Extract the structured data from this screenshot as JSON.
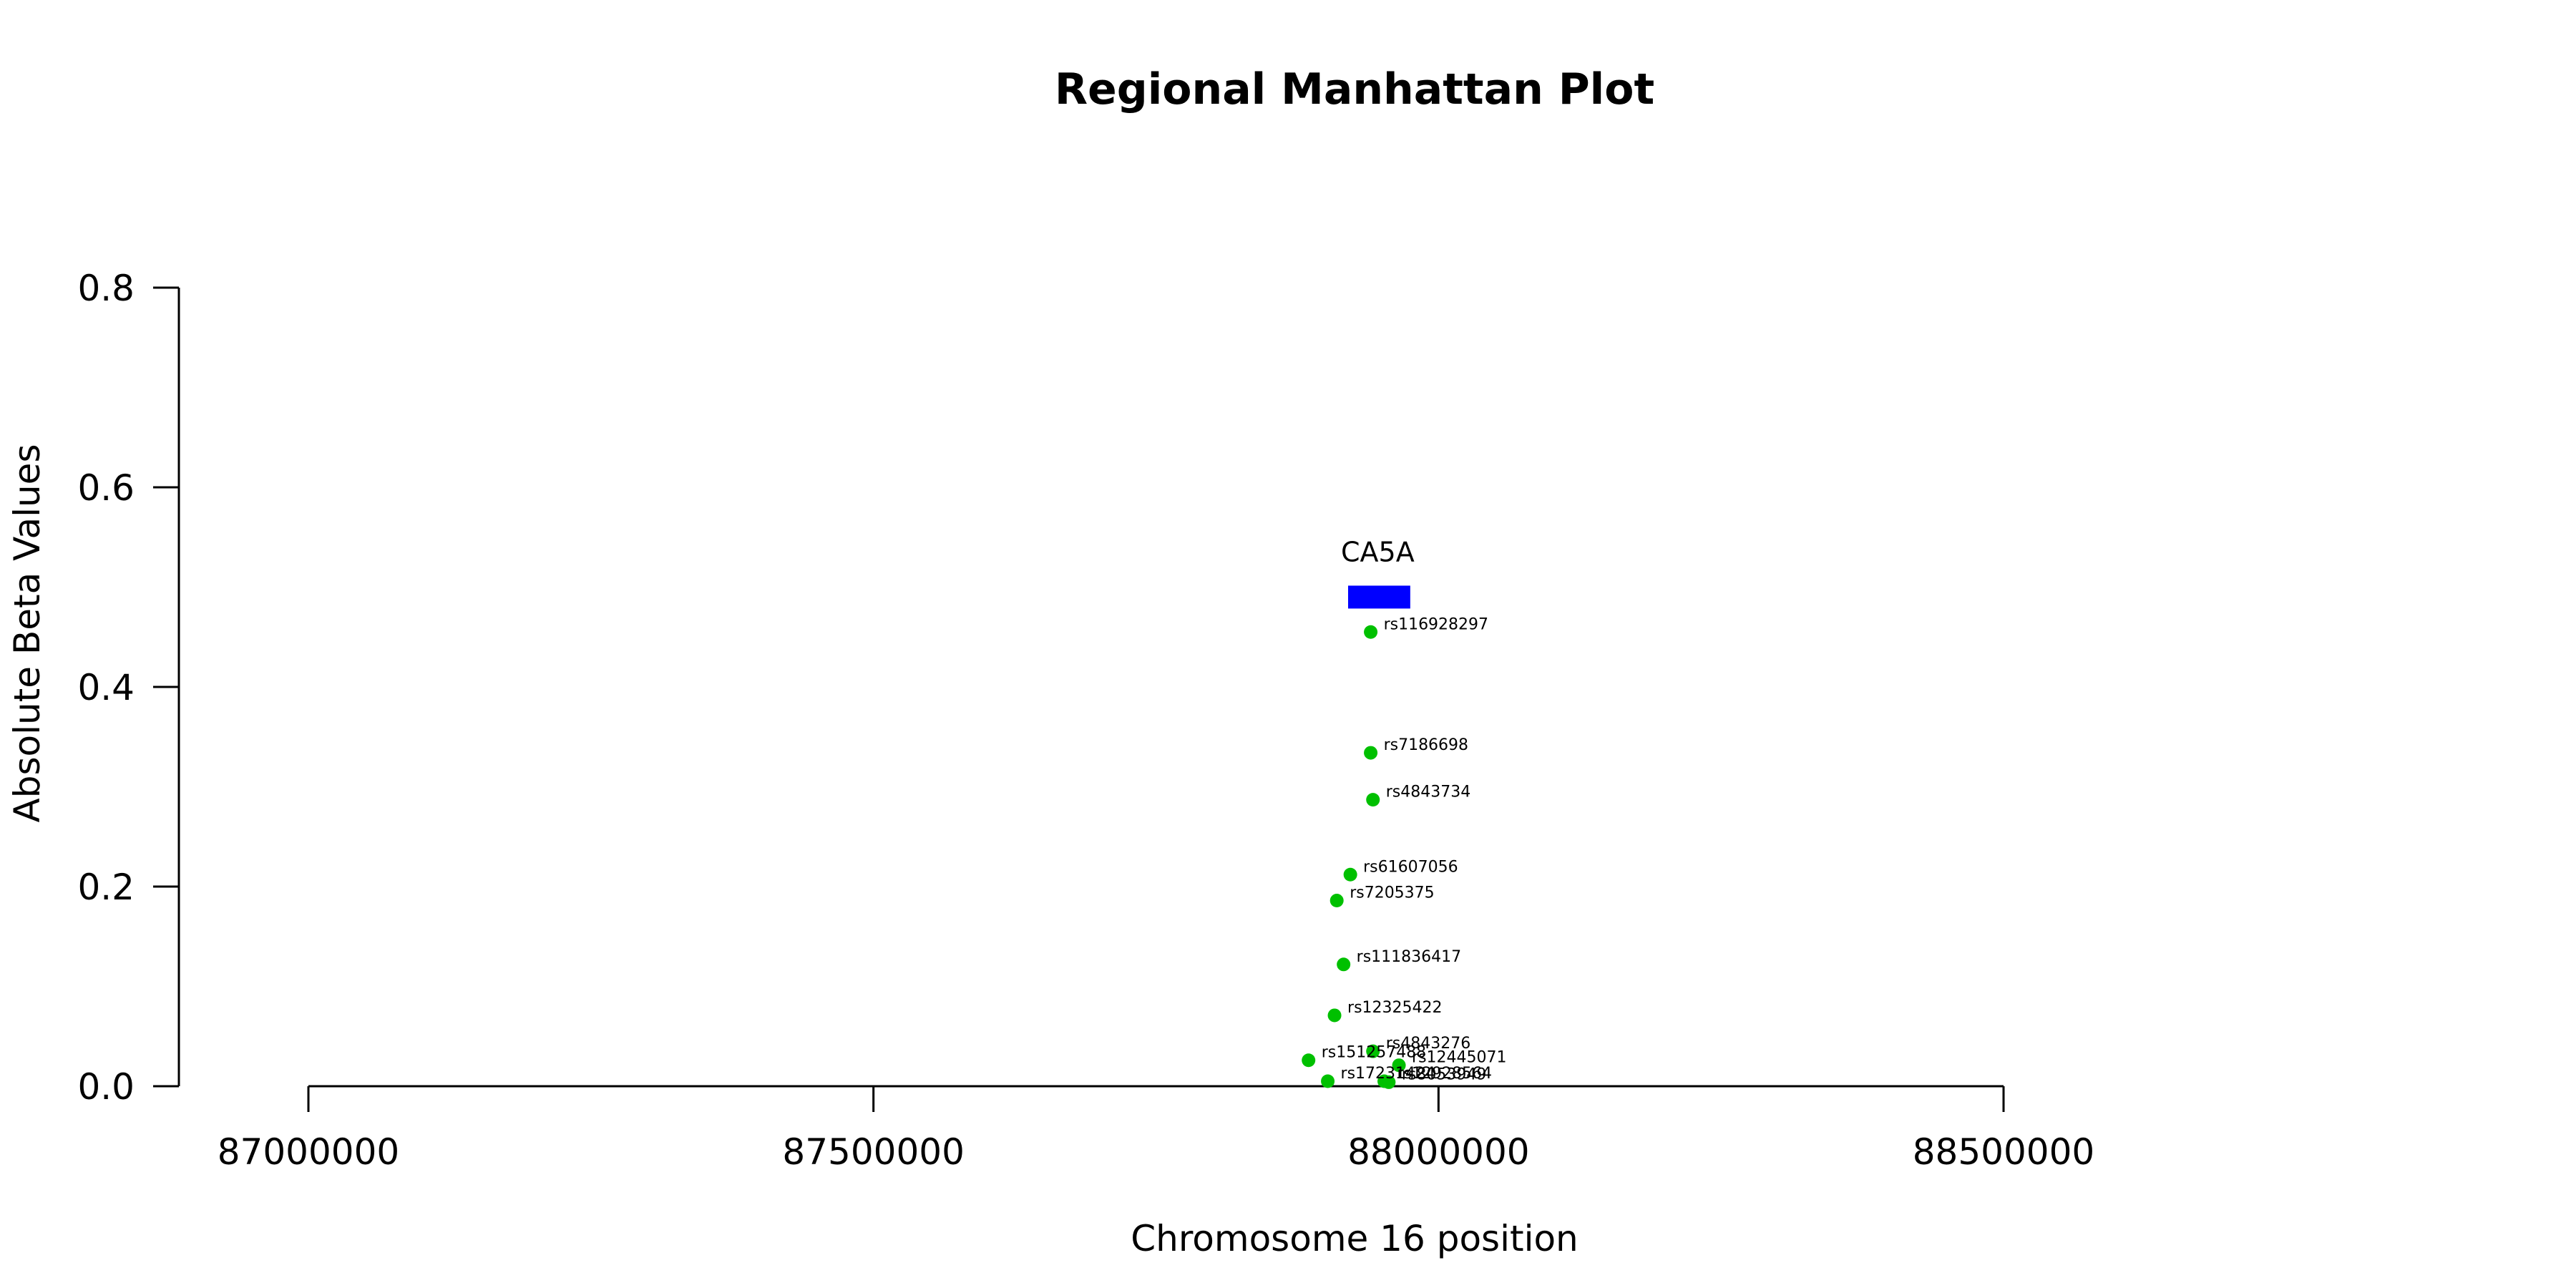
{
  "chart_data": {
    "type": "scatter",
    "title": "Regional Manhattan Plot",
    "xlabel": "Chromosome 16 position",
    "ylabel": "Absolute Beta Values",
    "xlim": [
      87000000,
      88500000
    ],
    "ylim": [
      0,
      0.8
    ],
    "xticks": [
      "87000000",
      "87500000",
      "88000000",
      "88500000"
    ],
    "yticks": [
      "0.0",
      "0.2",
      "0.4",
      "0.6",
      "0.8"
    ],
    "point_color": "#00c000",
    "gene": {
      "name": "CA5A",
      "start": 87920000,
      "end": 87975000,
      "y": 0.49,
      "color": "#0000ff"
    },
    "points": [
      {
        "label": "rs116928297",
        "x": 87940000,
        "y": 0.455
      },
      {
        "label": "rs7186698",
        "x": 87940000,
        "y": 0.334
      },
      {
        "label": "rs4843734",
        "x": 87942000,
        "y": 0.287
      },
      {
        "label": "rs61607056",
        "x": 87922000,
        "y": 0.212
      },
      {
        "label": "rs7205375",
        "x": 87910000,
        "y": 0.186
      },
      {
        "label": "rs111836417",
        "x": 87916000,
        "y": 0.122
      },
      {
        "label": "rs12325422",
        "x": 87908000,
        "y": 0.071
      },
      {
        "label": "rs4843276",
        "x": 87942000,
        "y": 0.035
      },
      {
        "label": "rs151257488",
        "x": 87885000,
        "y": 0.026
      },
      {
        "label": "rs12445071",
        "x": 87965000,
        "y": 0.021
      },
      {
        "label": "rs17231424",
        "x": 87902000,
        "y": 0.005
      },
      {
        "label": "rs12928564",
        "x": 87952000,
        "y": 0.005
      },
      {
        "label": "rs8053949",
        "x": 87956000,
        "y": 0.004
      }
    ]
  }
}
